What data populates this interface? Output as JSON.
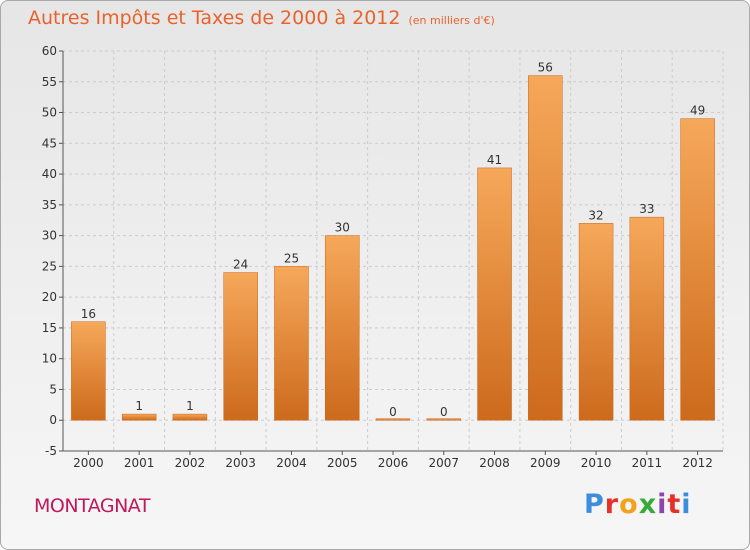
{
  "chart_data": {
    "type": "bar",
    "title": "Autres Impôts et Taxes de 2000 à 2012",
    "subtitle": "(en milliers d'€)",
    "categories": [
      "2000",
      "2001",
      "2002",
      "2003",
      "2004",
      "2005",
      "2006",
      "2007",
      "2008",
      "2009",
      "2010",
      "2011",
      "2012"
    ],
    "values": [
      16,
      1,
      1,
      24,
      25,
      30,
      0,
      0,
      41,
      56,
      32,
      33,
      49
    ],
    "data_labels": [
      "16",
      "1",
      "1",
      "24",
      "25",
      "30",
      "0",
      "0",
      "41",
      "56",
      "32",
      "33",
      "49"
    ],
    "ylim": [
      -5,
      60
    ],
    "yticks": [
      -5,
      0,
      5,
      10,
      15,
      20,
      25,
      30,
      35,
      40,
      45,
      50,
      55,
      60
    ],
    "xlabel": "",
    "ylabel": "",
    "grid": true,
    "legend": "none"
  },
  "footer": {
    "city": "MONTAGNAT",
    "logo_text": "Proxiti"
  },
  "colors": {
    "title": "#e8632b",
    "city": "#c2185b",
    "bar_top": "#f6a85a",
    "bar_bottom": "#cd6a1c",
    "grid": "#cccccc",
    "logo": [
      "#3b8ede",
      "#e4322b",
      "#f2a21b",
      "#3aa93c",
      "#8e44ad",
      "#e4322b",
      "#3b8ede"
    ]
  }
}
